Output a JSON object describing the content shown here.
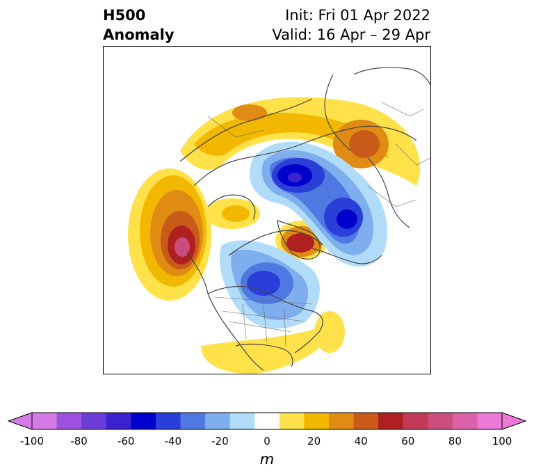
{
  "title": {
    "left_line1": "H500",
    "left_line2": "Anomaly",
    "right_line1": "Init: Fri 01 Apr 2022",
    "right_line2": "Valid: 16 Apr – 29 Apr"
  },
  "colorbar": {
    "unit": "m",
    "ticks": [
      "-100",
      "-80",
      "-60",
      "-40",
      "-20",
      "0",
      "20",
      "40",
      "60",
      "80",
      "100"
    ],
    "levels": [
      -100,
      -90,
      -80,
      -70,
      -60,
      -50,
      -40,
      -30,
      -20,
      -10,
      10,
      20,
      30,
      40,
      50,
      60,
      70,
      80,
      90,
      100
    ],
    "colors": [
      "#d67ae6",
      "#9d53e0",
      "#6a3dd8",
      "#3a22d0",
      "#0000cc",
      "#2a3fd8",
      "#4f78e3",
      "#7eaeee",
      "#b0dcfa",
      "#ffffff",
      "#ffe14a",
      "#f2b800",
      "#e08b14",
      "#c85a1a",
      "#b02020",
      "#c23a55",
      "#c94e7e",
      "#dc63aa",
      "#ec78d8"
    ],
    "extend_low_color": "#d67ae6",
    "extend_high_color": "#ec78d8"
  },
  "map": {
    "projection": "polar stereographic, North Pole",
    "features": [
      "coastlines",
      "country borders",
      "US state borders",
      "Canadian provincial borders"
    ]
  }
}
